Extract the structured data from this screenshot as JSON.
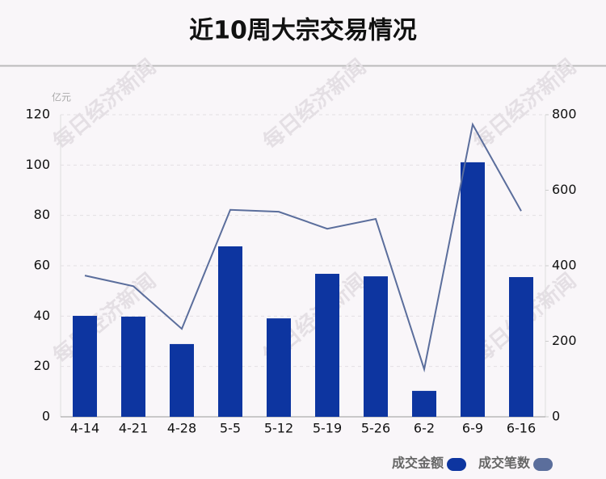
{
  "chart_data": {
    "type": "bar-line",
    "title": "近10周大宗交易情况",
    "y_unit": "亿元",
    "watermark": "每日经济新闻",
    "categories": [
      "4-14",
      "4-21",
      "4-28",
      "5-5",
      "5-12",
      "5-19",
      "5-26",
      "6-2",
      "6-9",
      "6-16"
    ],
    "series": [
      {
        "name": "成交金额",
        "type": "bar",
        "color": "#0d35a0",
        "values": [
          40.1,
          39.8,
          28.9,
          67.7,
          39.1,
          56.8,
          55.8,
          10.3,
          101.1,
          55.5
        ]
      },
      {
        "name": "成交笔数",
        "type": "line",
        "axis": "y2",
        "color": "#5b6e9c",
        "values": [
          374,
          346,
          233,
          548,
          543,
          498,
          524,
          126,
          774,
          545
        ]
      }
    ],
    "ylim": [
      0,
      120
    ],
    "yticks": [
      0,
      20,
      40,
      60,
      80,
      100,
      120
    ],
    "y2lim": [
      0,
      800
    ],
    "y2ticks": [
      0,
      200,
      400,
      600,
      800
    ],
    "grid": true,
    "legend": "bottom-right"
  }
}
